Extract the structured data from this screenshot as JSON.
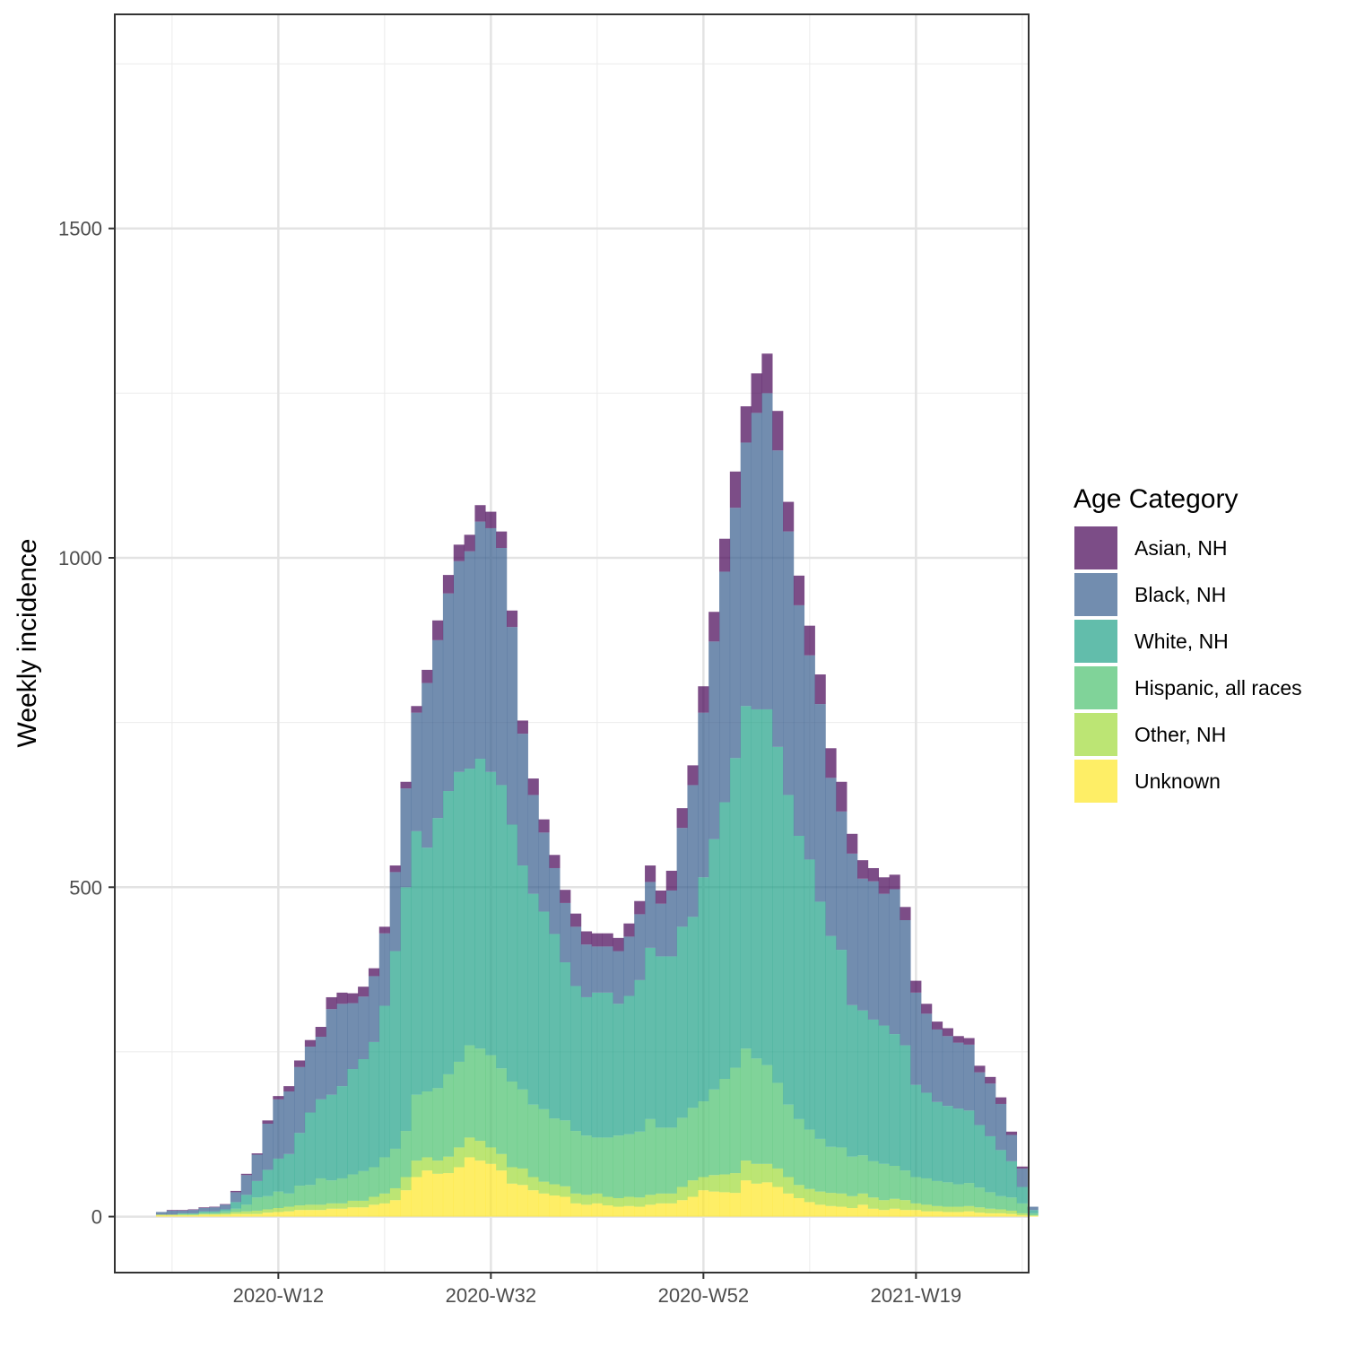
{
  "chart_data": {
    "type": "bar",
    "stacked": true,
    "xlabel": "",
    "ylabel": "Weekly incidence",
    "ylim": [
      -85,
      1825
    ],
    "y_ticks": [
      0,
      500,
      1000,
      1500
    ],
    "x_tick_labels": [
      "2020-W12",
      "2020-W32",
      "2020-W52",
      "2021-W19"
    ],
    "x_tick_indices": [
      11,
      31,
      51,
      71
    ],
    "legend": {
      "title": "Age Category",
      "position": "right"
    },
    "grid": true,
    "series": [
      {
        "name": "Unknown",
        "color": "#FDE725",
        "values": [
          2,
          2,
          2,
          2,
          3,
          3,
          3,
          4,
          4,
          4,
          6,
          7,
          8,
          10,
          10,
          10,
          12,
          12,
          14,
          14,
          18,
          20,
          25,
          40,
          60,
          70,
          65,
          66,
          75,
          90,
          85,
          80,
          70,
          50,
          48,
          40,
          35,
          32,
          30,
          20,
          18,
          20,
          17,
          15,
          16,
          15,
          18,
          20,
          20,
          25,
          30,
          40,
          38,
          37,
          36,
          55,
          50,
          52,
          45,
          35,
          28,
          22,
          18,
          16,
          15,
          13,
          18,
          12,
          10,
          12,
          10,
          10,
          8,
          8,
          7,
          7,
          8,
          6,
          5,
          5,
          4,
          2,
          1
        ]
      },
      {
        "name": "Other, NH",
        "color": "#A0DA39",
        "values": [
          1,
          1,
          1,
          1,
          1,
          1,
          2,
          3,
          4,
          5,
          5,
          6,
          7,
          7,
          8,
          8,
          8,
          8,
          10,
          10,
          12,
          15,
          18,
          20,
          25,
          20,
          20,
          25,
          30,
          30,
          30,
          25,
          25,
          25,
          25,
          20,
          18,
          17,
          16,
          15,
          15,
          15,
          13,
          13,
          14,
          14,
          15,
          15,
          15,
          20,
          25,
          20,
          25,
          27,
          30,
          30,
          30,
          28,
          28,
          25,
          20,
          20,
          20,
          20,
          20,
          18,
          17,
          17,
          15,
          15,
          15,
          10,
          10,
          8,
          8,
          8,
          8,
          8,
          7,
          6,
          5,
          3,
          1
        ]
      },
      {
        "name": "Hispanic, all races",
        "color": "#4AC16D",
        "values": [
          0,
          0,
          1,
          1,
          2,
          2,
          3,
          5,
          10,
          20,
          20,
          25,
          20,
          30,
          30,
          40,
          35,
          38,
          40,
          45,
          45,
          55,
          60,
          70,
          100,
          100,
          110,
          125,
          130,
          140,
          140,
          140,
          130,
          130,
          120,
          110,
          110,
          100,
          100,
          95,
          90,
          85,
          90,
          95,
          95,
          100,
          115,
          100,
          100,
          105,
          110,
          115,
          130,
          145,
          160,
          170,
          160,
          150,
          130,
          110,
          100,
          90,
          80,
          70,
          70,
          60,
          58,
          55,
          55,
          50,
          45,
          40,
          40,
          38,
          37,
          34,
          35,
          30,
          25,
          20,
          20,
          15,
          3
        ]
      },
      {
        "name": "White, NH",
        "color": "#1FA187",
        "values": [
          0,
          0,
          1,
          1,
          2,
          2,
          3,
          10,
          15,
          25,
          40,
          50,
          60,
          80,
          110,
          120,
          130,
          140,
          160,
          170,
          190,
          230,
          300,
          370,
          400,
          370,
          410,
          430,
          440,
          420,
          440,
          430,
          430,
          390,
          340,
          320,
          300,
          280,
          240,
          220,
          210,
          220,
          220,
          200,
          210,
          230,
          260,
          260,
          260,
          290,
          290,
          340,
          380,
          420,
          470,
          520,
          530,
          540,
          510,
          470,
          430,
          410,
          360,
          320,
          300,
          230,
          220,
          215,
          210,
          200,
          190,
          140,
          130,
          120,
          116,
          115,
          110,
          95,
          85,
          70,
          55,
          25,
          5
        ]
      },
      {
        "name": "Black, NH",
        "color": "#365C8D",
        "values": [
          4,
          6,
          4,
          5,
          5,
          6,
          7,
          15,
          30,
          40,
          70,
          90,
          95,
          100,
          100,
          95,
          130,
          125,
          100,
          95,
          100,
          110,
          120,
          150,
          180,
          250,
          270,
          300,
          320,
          330,
          360,
          370,
          360,
          300,
          200,
          150,
          120,
          100,
          90,
          90,
          80,
          70,
          70,
          80,
          90,
          100,
          100,
          80,
          100,
          150,
          200,
          250,
          300,
          350,
          380,
          400,
          450,
          480,
          450,
          400,
          350,
          310,
          300,
          240,
          210,
          230,
          200,
          210,
          200,
          220,
          190,
          140,
          120,
          110,
          106,
          100,
          100,
          80,
          80,
          70,
          40,
          28,
          5
        ]
      },
      {
        "name": "Asian, NH",
        "color": "#440154",
        "values": [
          0,
          1,
          1,
          1,
          1,
          1,
          1,
          2,
          2,
          2,
          5,
          5,
          8,
          10,
          10,
          15,
          18,
          17,
          15,
          15,
          12,
          10,
          10,
          10,
          10,
          20,
          30,
          28,
          25,
          25,
          25,
          25,
          25,
          25,
          20,
          25,
          20,
          20,
          20,
          20,
          20,
          20,
          20,
          20,
          20,
          20,
          25,
          20,
          30,
          30,
          30,
          40,
          45,
          50,
          55,
          55,
          60,
          60,
          60,
          45,
          45,
          45,
          45,
          45,
          45,
          30,
          28,
          20,
          25,
          22,
          20,
          18,
          15,
          12,
          12,
          10,
          10,
          10,
          10,
          10,
          5,
          3,
          0
        ]
      }
    ]
  }
}
